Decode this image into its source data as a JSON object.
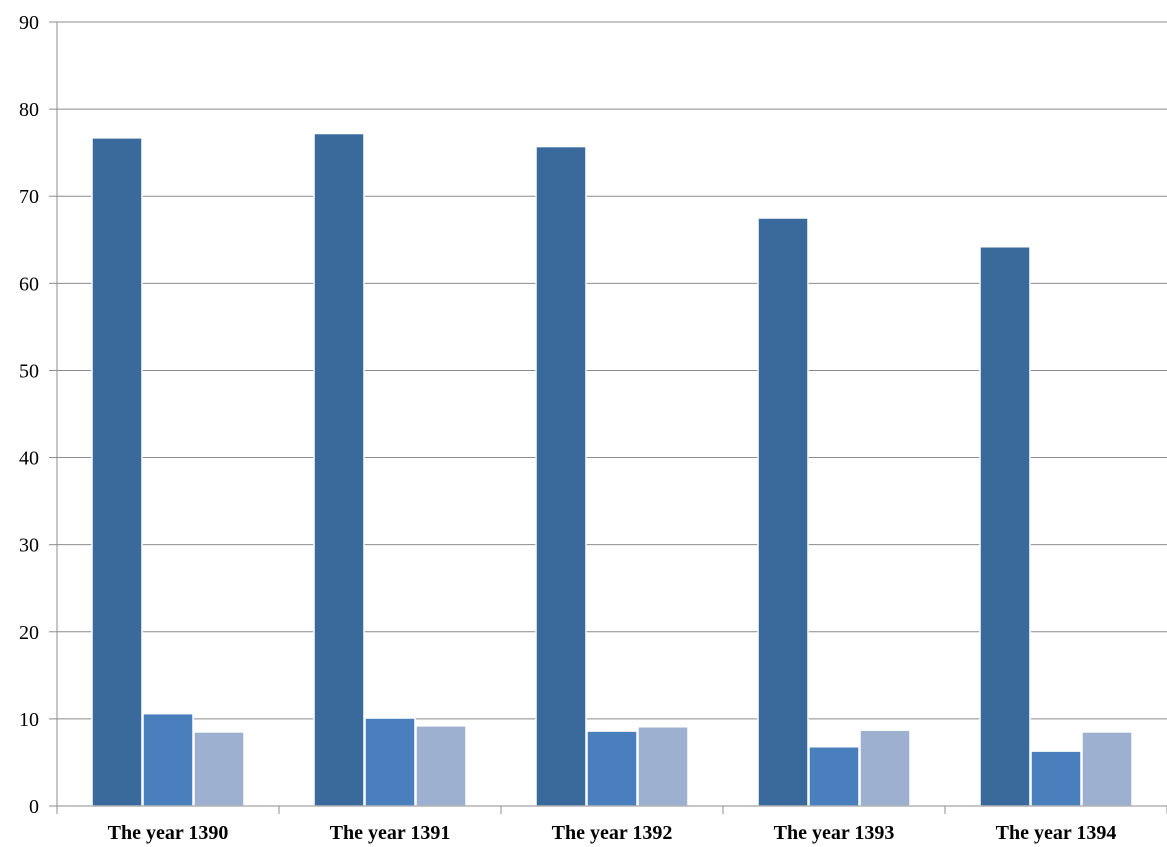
{
  "chart_data": {
    "type": "bar",
    "title": "",
    "xlabel": "",
    "ylabel": "",
    "ylim": [
      0,
      90
    ],
    "yticks": [
      0,
      10,
      20,
      30,
      40,
      50,
      60,
      70,
      80,
      90
    ],
    "grid": true,
    "legend": "none",
    "categories": [
      "The year 1390",
      "The year 1391",
      "The year 1392",
      "The year 1393",
      "The year 1394"
    ],
    "series": [
      {
        "values": [
          76.7,
          77.2,
          75.7,
          67.5,
          64.2
        ],
        "color": "#3a6a9c"
      },
      {
        "values": [
          10.6,
          10.1,
          8.6,
          6.8,
          6.3
        ],
        "color": "#4a7fbd"
      },
      {
        "values": [
          8.5,
          9.2,
          9.1,
          8.7,
          8.5
        ],
        "color": "#9db0d0"
      }
    ]
  }
}
